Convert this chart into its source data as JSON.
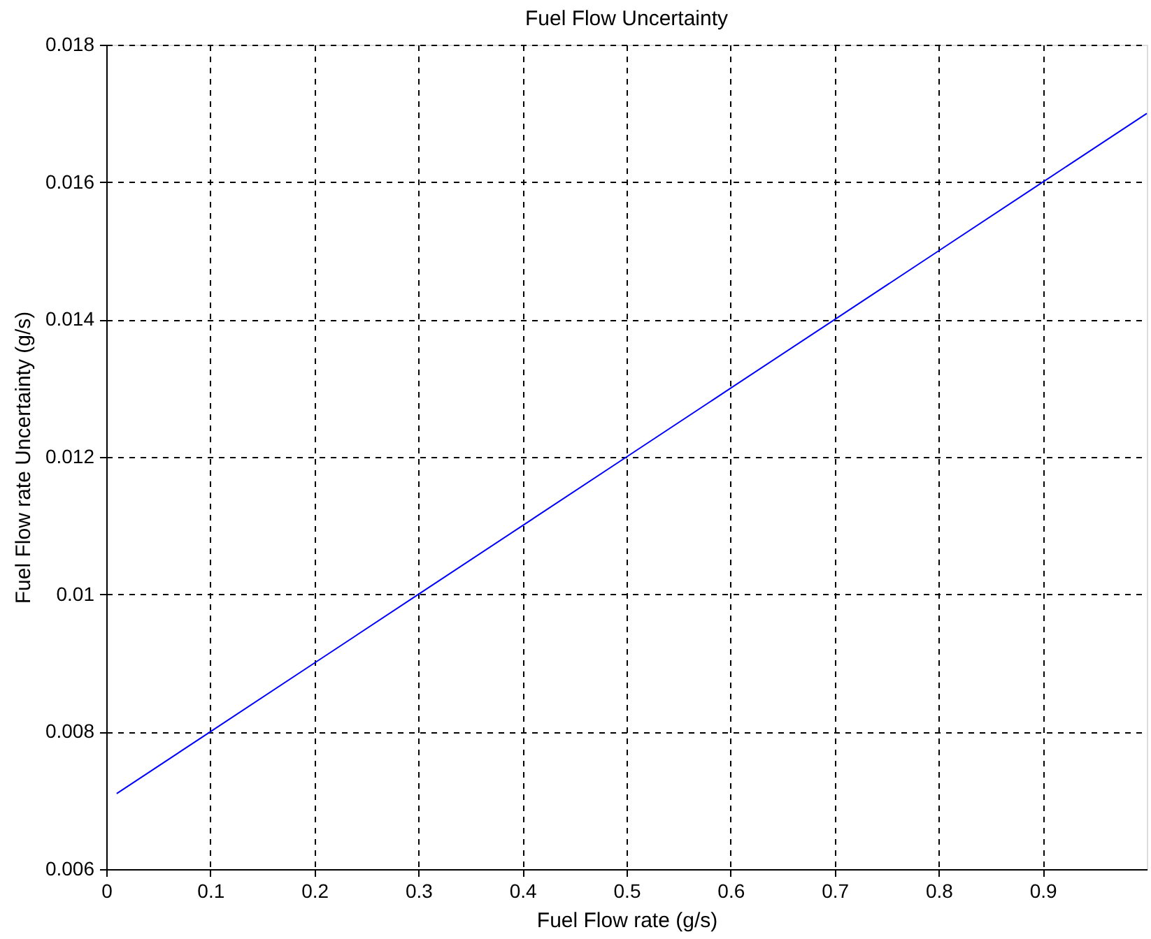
{
  "chart_data": {
    "type": "line",
    "title": "Fuel Flow Uncertainty",
    "xlabel": "Fuel Flow rate (g/s)",
    "ylabel": "Fuel Flow rate Uncertainty (g/s)",
    "x": [
      0.01,
      0.1,
      0.2,
      0.3,
      0.4,
      0.5,
      0.6,
      0.7,
      0.8,
      0.9,
      1.0
    ],
    "series": [
      {
        "color": "#0000ff",
        "values": [
          0.0071,
          0.008,
          0.009,
          0.01,
          0.011,
          0.012,
          0.013,
          0.014,
          0.015,
          0.016,
          0.017
        ]
      }
    ],
    "xlim": [
      0,
      1
    ],
    "xticks": [
      0,
      0.1,
      0.2,
      0.3,
      0.4,
      0.5,
      0.6,
      0.7,
      0.8,
      0.9
    ],
    "ylim": [
      0.006,
      0.018
    ],
    "yticks": [
      0.006,
      0.008,
      0.01,
      0.012,
      0.014,
      0.016,
      0.018
    ],
    "grid": true,
    "line_style": "solid"
  }
}
